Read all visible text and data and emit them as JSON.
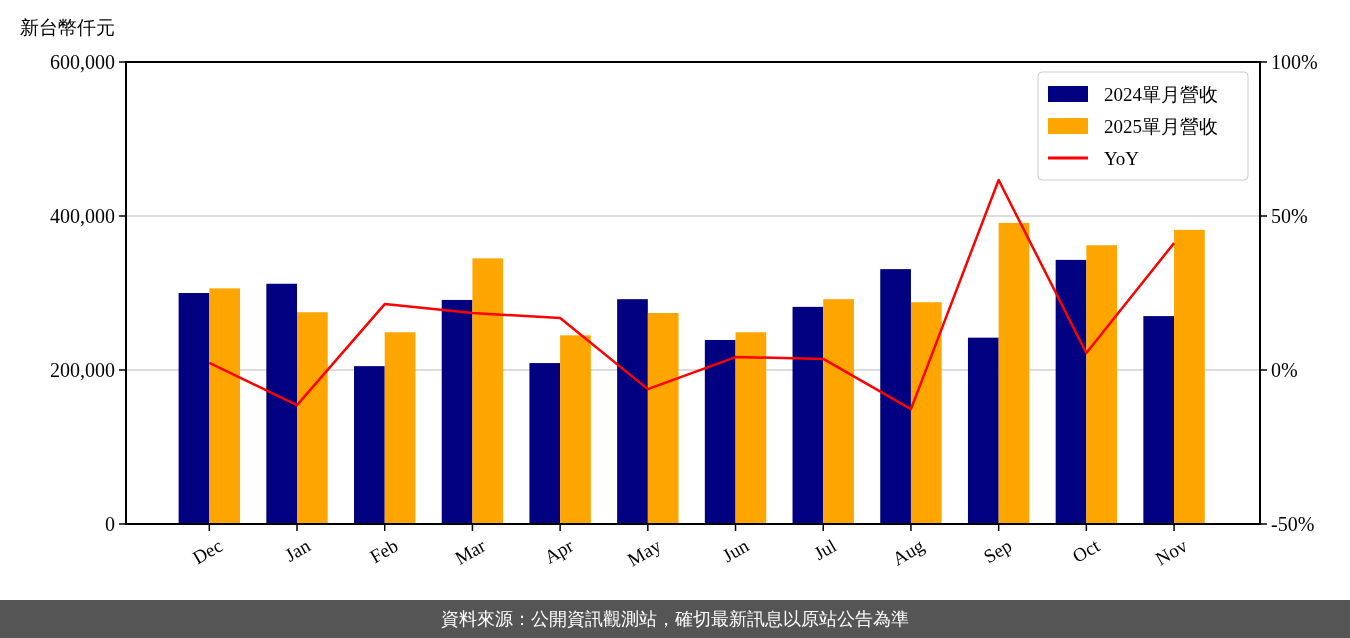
{
  "chart_data": {
    "type": "bar",
    "ylabel": "新台幣仟元",
    "categories": [
      "Dec",
      "Jan",
      "Feb",
      "Mar",
      "Apr",
      "May",
      "Jun",
      "Jul",
      "Aug",
      "Sep",
      "Oct",
      "Nov"
    ],
    "series": [
      {
        "name": "2024單月營收",
        "color": "#000080",
        "values": [
          300000,
          312000,
          205000,
          291000,
          209000,
          292000,
          239000,
          282000,
          331000,
          242000,
          343000,
          270000
        ]
      },
      {
        "name": "2025單月營收",
        "color": "#ffa500",
        "values": [
          306000,
          275000,
          249000,
          345000,
          245000,
          274000,
          249000,
          292000,
          288000,
          391000,
          362000,
          382000
        ]
      },
      {
        "name": "YoY",
        "type": "line",
        "axis": "y2",
        "color": "#ff0000",
        "values": [
          2.3,
          -11.4,
          21.4,
          18.5,
          16.9,
          -6.2,
          4.2,
          3.6,
          -12.7,
          61.7,
          5.5,
          41.2
        ]
      }
    ],
    "ylim": [
      0,
      600000
    ],
    "yticks": [
      {
        "value": 0,
        "label": "0"
      },
      {
        "value": 200000,
        "label": "200,000"
      },
      {
        "value": 400000,
        "label": "400,000"
      },
      {
        "value": 600000,
        "label": "600,000"
      }
    ],
    "y2lim": [
      -50,
      100
    ],
    "y2ticks": [
      {
        "value": -50,
        "label": "-50%"
      },
      {
        "value": 0,
        "label": "0%"
      },
      {
        "value": 50,
        "label": "50%"
      },
      {
        "value": 100,
        "label": "100%"
      }
    ],
    "grid": "y",
    "legend": "top right",
    "marker": "none",
    "line_style": "solid",
    "annotations": [
      "資料來源：公開資訊觀測站，確切最新訊息以原站公告為準"
    ]
  }
}
